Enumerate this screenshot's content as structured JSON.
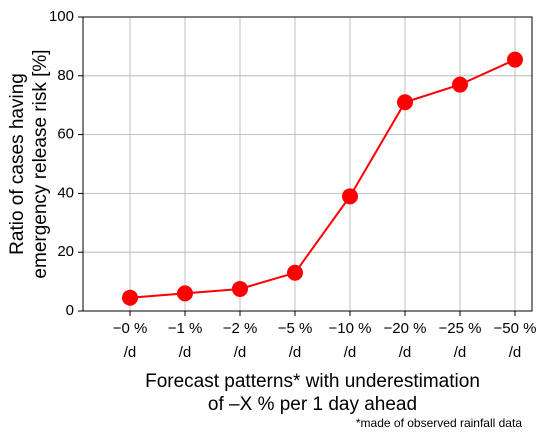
{
  "chart_data": {
    "type": "line",
    "ylabel": "Ratio of cases having\nemergency release risk [%]",
    "xlabel": "Forecast patterns* with underestimation\nof –X %  per 1 day ahead",
    "footnote": "*made of observed rainfall data",
    "categories": [
      "−0 %\n/d",
      "−1 %\n/d",
      "−2 %\n/d",
      "−5 %\n/d",
      "−10 %\n/d",
      "−20 %\n/d",
      "−25 %\n/d",
      "−50 %\n/d"
    ],
    "series": [
      {
        "name": "Ratio",
        "color": "#ff0000",
        "values": [
          4.5,
          6,
          7.5,
          13,
          39,
          71,
          77,
          85.5
        ]
      }
    ],
    "ylim": [
      0,
      100
    ],
    "yticks": [
      0,
      20,
      40,
      60,
      80,
      100
    ],
    "grid": true
  }
}
